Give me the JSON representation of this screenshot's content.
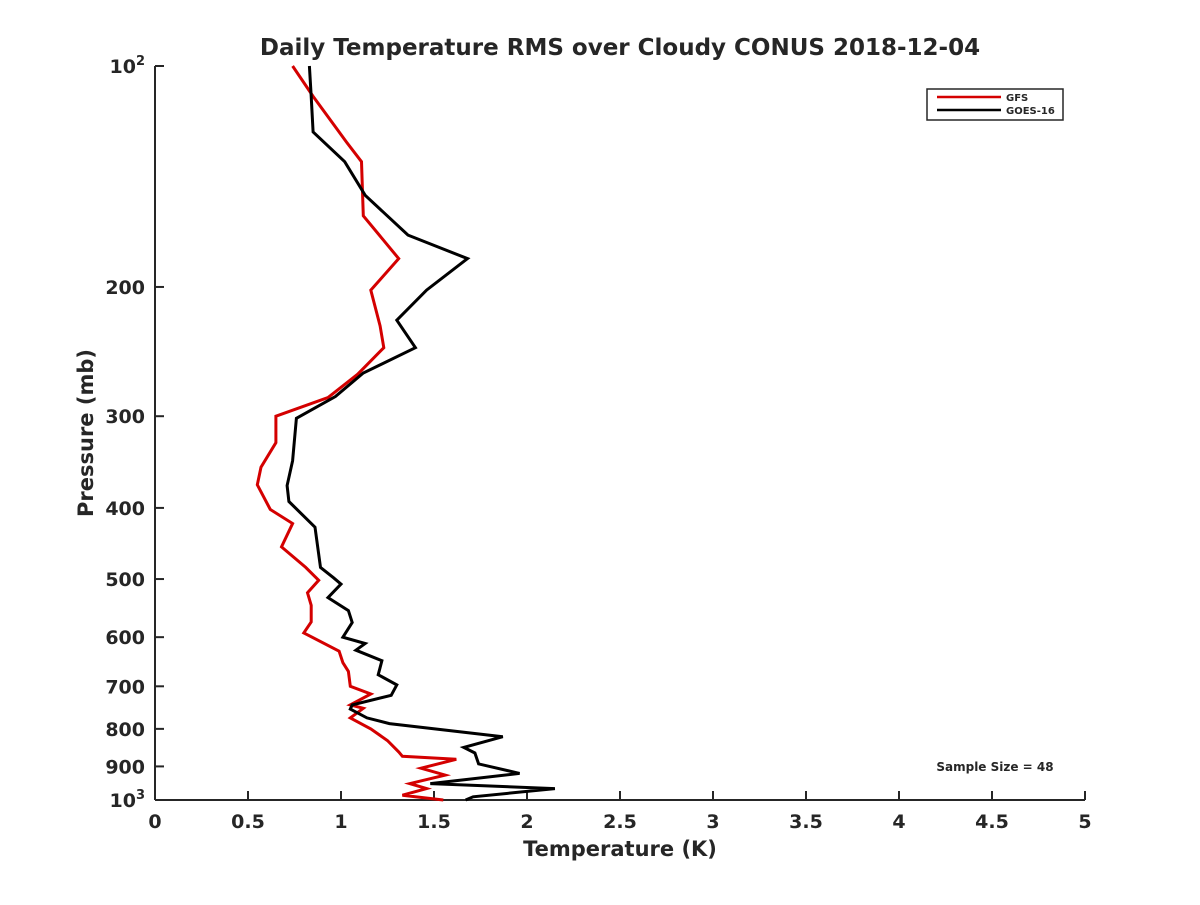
{
  "chart_data": {
    "type": "line",
    "title": "Daily Temperature RMS over Cloudy CONUS 2018-12-04",
    "xlabel": "Temperature (K)",
    "ylabel": "Pressure (mb)",
    "xlim": [
      0,
      5
    ],
    "ylim": [
      100,
      1000
    ],
    "y_scale": "log",
    "y_reversed": true,
    "grid": false,
    "legend_position": "top-right",
    "x_ticks": [
      "0",
      "0.5",
      "1",
      "1.5",
      "2",
      "2.5",
      "3",
      "3.5",
      "4",
      "4.5",
      "5"
    ],
    "y_ticks": [
      {
        "value": 100,
        "label": "10",
        "sup": "2"
      },
      {
        "value": 200,
        "label": "200",
        "sup": ""
      },
      {
        "value": 300,
        "label": "300",
        "sup": ""
      },
      {
        "value": 400,
        "label": "400",
        "sup": ""
      },
      {
        "value": 500,
        "label": "500",
        "sup": ""
      },
      {
        "value": 600,
        "label": "600",
        "sup": ""
      },
      {
        "value": 700,
        "label": "700",
        "sup": ""
      },
      {
        "value": 800,
        "label": "800",
        "sup": ""
      },
      {
        "value": 900,
        "label": "900",
        "sup": ""
      },
      {
        "value": 1000,
        "label": "10",
        "sup": "3"
      }
    ],
    "annotation": "Sample Size = 48",
    "series": [
      {
        "name": "GFS",
        "color": "#d40000",
        "points": [
          [
            0.74,
            100
          ],
          [
            0.85,
            110
          ],
          [
            1.03,
            127
          ],
          [
            1.11,
            135
          ],
          [
            1.12,
            160
          ],
          [
            1.31,
            183
          ],
          [
            1.16,
            202
          ],
          [
            1.21,
            226
          ],
          [
            1.23,
            242
          ],
          [
            1.09,
            263
          ],
          [
            0.93,
            283
          ],
          [
            0.65,
            300
          ],
          [
            0.65,
            326
          ],
          [
            0.57,
            352
          ],
          [
            0.55,
            372
          ],
          [
            0.62,
            402
          ],
          [
            0.74,
            420
          ],
          [
            0.68,
            452
          ],
          [
            0.81,
            482
          ],
          [
            0.88,
            502
          ],
          [
            0.82,
            522
          ],
          [
            0.84,
            543
          ],
          [
            0.84,
            572
          ],
          [
            0.8,
            592
          ],
          [
            0.99,
            627
          ],
          [
            1.01,
            650
          ],
          [
            1.04,
            668
          ],
          [
            1.05,
            700
          ],
          [
            1.16,
            717
          ],
          [
            1.05,
            742
          ],
          [
            1.12,
            750
          ],
          [
            1.05,
            773
          ],
          [
            1.16,
            800
          ],
          [
            1.25,
            830
          ],
          [
            1.31,
            860
          ],
          [
            1.33,
            872
          ],
          [
            1.62,
            880
          ],
          [
            1.43,
            905
          ],
          [
            1.56,
            925
          ],
          [
            1.37,
            950
          ],
          [
            1.46,
            965
          ],
          [
            1.33,
            985
          ],
          [
            1.55,
            1000
          ]
        ]
      },
      {
        "name": "GOES-16",
        "color": "#000000",
        "points": [
          [
            0.83,
            100
          ],
          [
            0.84,
            110
          ],
          [
            0.85,
            123
          ],
          [
            1.02,
            135
          ],
          [
            1.13,
            150
          ],
          [
            1.36,
            170
          ],
          [
            1.68,
            183
          ],
          [
            1.46,
            202
          ],
          [
            1.3,
            222
          ],
          [
            1.4,
            242
          ],
          [
            1.12,
            262
          ],
          [
            0.97,
            282
          ],
          [
            0.76,
            302
          ],
          [
            0.74,
            345
          ],
          [
            0.71,
            373
          ],
          [
            0.72,
            392
          ],
          [
            0.86,
            425
          ],
          [
            0.89,
            482
          ],
          [
            0.96,
            498
          ],
          [
            1.0,
            508
          ],
          [
            0.93,
            530
          ],
          [
            1.04,
            552
          ],
          [
            1.06,
            573
          ],
          [
            1.01,
            600
          ],
          [
            1.13,
            612
          ],
          [
            1.08,
            625
          ],
          [
            1.22,
            646
          ],
          [
            1.2,
            675
          ],
          [
            1.3,
            697
          ],
          [
            1.27,
            720
          ],
          [
            1.06,
            742
          ],
          [
            1.05,
            752
          ],
          [
            1.14,
            773
          ],
          [
            1.26,
            787
          ],
          [
            1.87,
            820
          ],
          [
            1.66,
            848
          ],
          [
            1.72,
            863
          ],
          [
            1.74,
            893
          ],
          [
            1.96,
            920
          ],
          [
            1.48,
            950
          ],
          [
            2.15,
            965
          ],
          [
            1.71,
            990
          ],
          [
            1.67,
            1000
          ]
        ]
      }
    ]
  }
}
